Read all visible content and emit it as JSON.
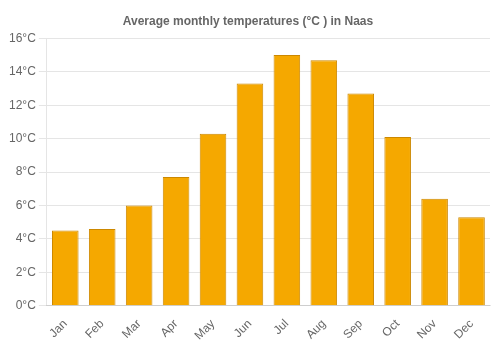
{
  "chart_data": {
    "type": "bar",
    "title": "Average monthly temperatures (°C ) in Naas",
    "categories": [
      "Jan",
      "Feb",
      "Mar",
      "Apr",
      "May",
      "Jun",
      "Jul",
      "Aug",
      "Sep",
      "Oct",
      "Nov",
      "Dec"
    ],
    "values": [
      4.5,
      4.6,
      6.0,
      7.7,
      10.3,
      13.3,
      15.0,
      14.7,
      12.7,
      10.1,
      6.4,
      5.3
    ],
    "color": "#F5A800",
    "ylim": [
      0,
      16
    ],
    "yticks": [
      {
        "value": 0,
        "label": "0°C"
      },
      {
        "value": 2,
        "label": "2°C"
      },
      {
        "value": 4,
        "label": "4°C"
      },
      {
        "value": 6,
        "label": "6°C"
      },
      {
        "value": 8,
        "label": "8°C"
      },
      {
        "value": 10,
        "label": "10°C"
      },
      {
        "value": 12,
        "label": "12°C"
      },
      {
        "value": 14,
        "label": "14°C"
      },
      {
        "value": 16,
        "label": "16°C"
      }
    ],
    "grid": true
  }
}
